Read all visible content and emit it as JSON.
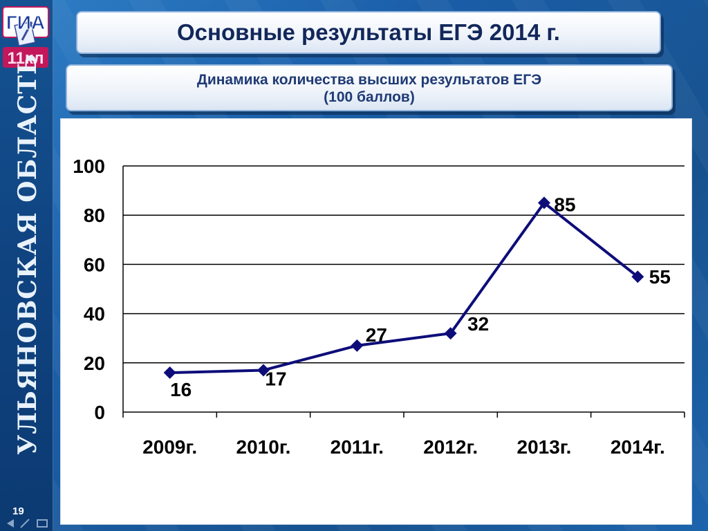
{
  "slide": {
    "title": "Основные результаты ЕГЭ 2014 г.",
    "subtitle_line1": "Динамика количества высших результатов ЕГЭ",
    "subtitle_line2": "(100 баллов)",
    "region": "УЛЬЯНОВСКАЯ ОБЛАСТЬ",
    "slide_number": "19",
    "logo_top": "ГИА",
    "logo_bottom": "11кл"
  },
  "colors": {
    "series_line": "#0d0d7a",
    "marker": "#0d0d7a",
    "title_text": "#12275a"
  },
  "chart_data": {
    "type": "line",
    "title": "",
    "xlabel": "",
    "ylabel": "",
    "categories": [
      "2009г.",
      "2010г.",
      "2011г.",
      "2012г.",
      "2013г.",
      "2014г."
    ],
    "series": [
      {
        "values": [
          16,
          17,
          27,
          32,
          85,
          55
        ]
      }
    ],
    "data_labels": [
      "16",
      "17",
      "27",
      "32",
      "85",
      "55"
    ],
    "ylim": [
      0,
      100
    ],
    "yticks": [
      "0",
      "20",
      "40",
      "60",
      "80",
      "100"
    ],
    "grid": true,
    "legend": "none"
  }
}
